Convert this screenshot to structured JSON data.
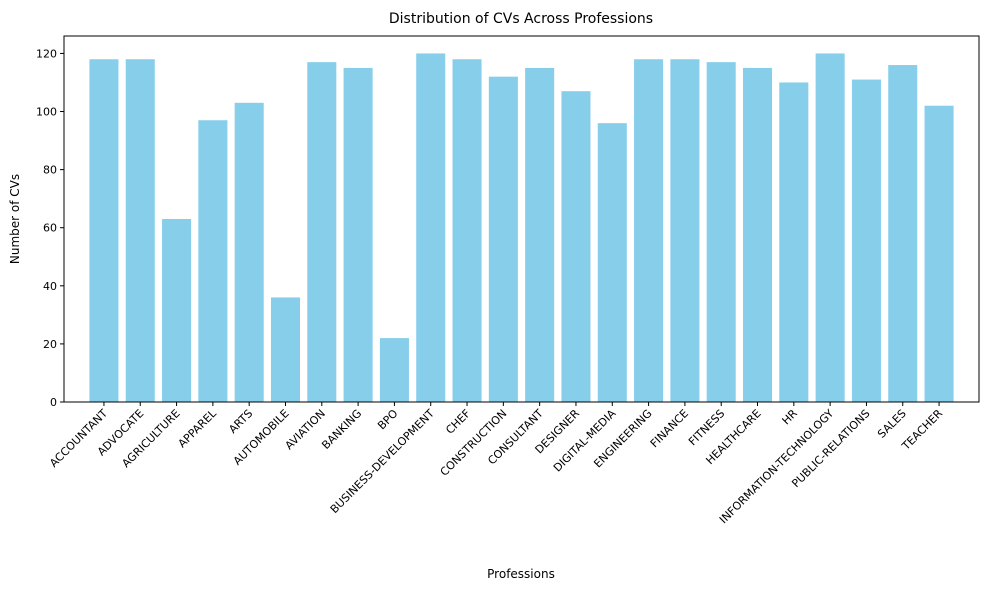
{
  "chart_data": {
    "type": "bar",
    "title": "Distribution of CVs Across Professions",
    "xlabel": "Professions",
    "ylabel": "Number of CVs",
    "ylim": [
      0,
      126
    ],
    "yticks": [
      0,
      20,
      40,
      60,
      80,
      100,
      120
    ],
    "grid": false,
    "bar_color": "#87CEEB",
    "categories": [
      "ACCOUNTANT",
      "ADVOCATE",
      "AGRICULTURE",
      "APPAREL",
      "ARTS",
      "AUTOMOBILE",
      "AVIATION",
      "BANKING",
      "BPO",
      "BUSINESS-DEVELOPMENT",
      "CHEF",
      "CONSTRUCTION",
      "CONSULTANT",
      "DESIGNER",
      "DIGITAL-MEDIA",
      "ENGINEERING",
      "FINANCE",
      "FITNESS",
      "HEALTHCARE",
      "HR",
      "INFORMATION-TECHNOLOGY",
      "PUBLIC-RELATIONS",
      "SALES",
      "TEACHER"
    ],
    "values": [
      118,
      118,
      63,
      97,
      103,
      36,
      117,
      115,
      22,
      120,
      118,
      112,
      115,
      107,
      96,
      118,
      118,
      117,
      115,
      110,
      120,
      111,
      116,
      102
    ]
  }
}
